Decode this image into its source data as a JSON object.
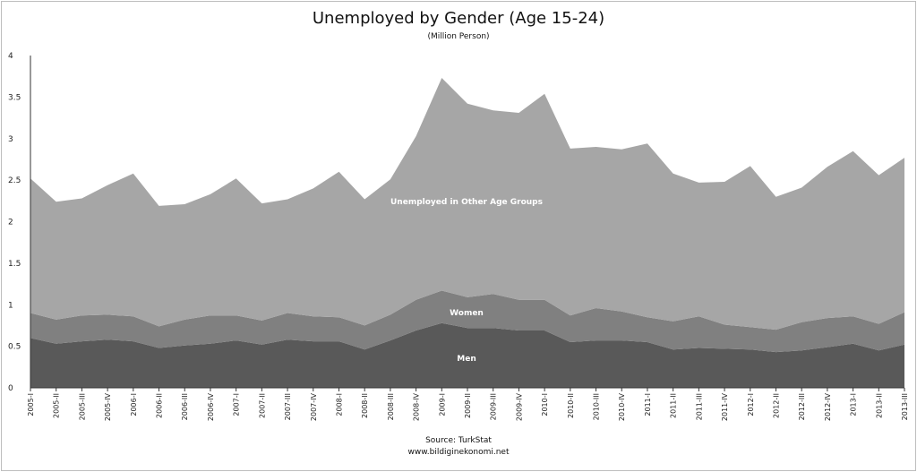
{
  "chart_data": {
    "type": "area",
    "stacked": true,
    "title": "Unemployed by Gender  (Age 15-24)",
    "subtitle": "(Million Person)",
    "source": "Source: TurkStat",
    "website": "www.bildiginekonomi.net",
    "ylim": [
      0,
      4
    ],
    "yticks": [
      "0",
      "0.5",
      "1",
      "1.5",
      "2",
      "2.5",
      "3",
      "3.5",
      "4"
    ],
    "categories": [
      "2005-I",
      "2005-II",
      "2005-III",
      "2005-IV",
      "2006-I",
      "2006-II",
      "2006-III",
      "2006-IV",
      "2007-I",
      "2007-II",
      "2007-III",
      "2007-IV",
      "2008-I",
      "2008-II",
      "2008-III",
      "2008-IV",
      "2009-I",
      "2009-II",
      "2009-III",
      "2009-IV",
      "2010-I",
      "2010-II",
      "2010-III",
      "2010-IV",
      "2011-I",
      "2011-II",
      "2011-III",
      "2011-IV",
      "2012-I",
      "2012-II",
      "2012-III",
      "2012-IV",
      "2013-I",
      "2013-II",
      "2013-III"
    ],
    "series": [
      {
        "name": "Men",
        "color": "#595959",
        "values": [
          0.6,
          0.53,
          0.56,
          0.58,
          0.56,
          0.48,
          0.51,
          0.53,
          0.57,
          0.52,
          0.58,
          0.56,
          0.56,
          0.46,
          0.57,
          0.69,
          0.78,
          0.72,
          0.72,
          0.69,
          0.69,
          0.55,
          0.57,
          0.57,
          0.55,
          0.46,
          0.48,
          0.47,
          0.46,
          0.43,
          0.45,
          0.49,
          0.53,
          0.45,
          0.52
        ]
      },
      {
        "name": "Women",
        "color": "#808080",
        "values": [
          0.3,
          0.29,
          0.31,
          0.3,
          0.3,
          0.26,
          0.31,
          0.34,
          0.3,
          0.29,
          0.32,
          0.3,
          0.29,
          0.29,
          0.31,
          0.37,
          0.39,
          0.37,
          0.41,
          0.37,
          0.37,
          0.32,
          0.39,
          0.35,
          0.3,
          0.34,
          0.38,
          0.29,
          0.27,
          0.27,
          0.34,
          0.35,
          0.33,
          0.32,
          0.39
        ]
      },
      {
        "name": "Unemployed in Other Age Groups",
        "color": "#a6a6a6",
        "values": [
          1.62,
          1.42,
          1.41,
          1.56,
          1.72,
          1.45,
          1.39,
          1.46,
          1.65,
          1.41,
          1.37,
          1.54,
          1.75,
          1.52,
          1.63,
          1.97,
          2.56,
          2.33,
          2.21,
          2.25,
          2.48,
          2.01,
          1.94,
          1.95,
          2.09,
          1.78,
          1.61,
          1.72,
          1.94,
          1.6,
          1.62,
          1.82,
          1.99,
          1.79,
          1.86
        ]
      }
    ],
    "grid": false,
    "legend": "inline labels"
  }
}
